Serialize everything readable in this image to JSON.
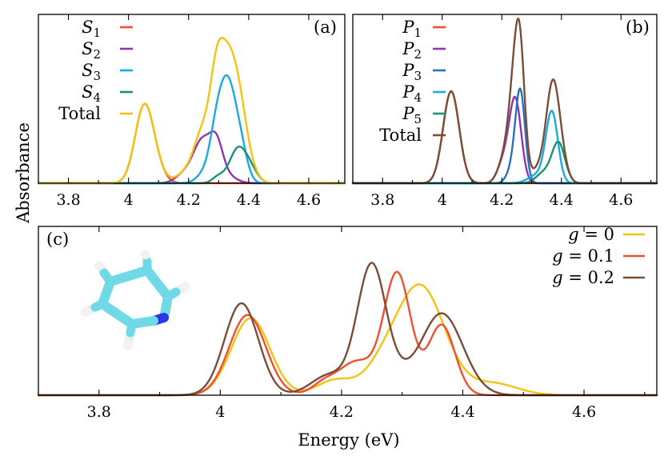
{
  "figure": {
    "ylabel": "Absorbance",
    "xlabel": "Energy (eV)"
  },
  "chart_data": [
    {
      "type": "line",
      "panel": "(a)",
      "xlim": [
        3.7,
        4.72
      ],
      "ylim": [
        0,
        1
      ],
      "ylabel": "Absorbance",
      "xticks": [
        3.8,
        4.0,
        4.2,
        4.4,
        4.6
      ],
      "xtick_labels": [
        "3.8",
        "4",
        "4.2",
        "4.4",
        "4.6"
      ],
      "legend_position": "top-left",
      "series": [
        {
          "id": "S1",
          "base": "S",
          "sub": "1",
          "color": "#f05030",
          "peaks": [
            [
              4.05,
              0.42,
              0.03
            ],
            [
              4.085,
              0.1,
              0.03
            ]
          ]
        },
        {
          "id": "S2",
          "base": "S",
          "sub": "2",
          "color": "#8e35b3",
          "peaks": [
            [
              4.245,
              0.24,
              0.028
            ],
            [
              4.292,
              0.22,
              0.022
            ],
            [
              4.19,
              0.06,
              0.03
            ],
            [
              4.33,
              0.04,
              0.03
            ]
          ]
        },
        {
          "id": "S3",
          "base": "S",
          "sub": "3",
          "color": "#1aa9e0",
          "peaks": [
            [
              4.33,
              0.58,
              0.028
            ],
            [
              4.29,
              0.22,
              0.022
            ],
            [
              4.375,
              0.16,
              0.022
            ],
            [
              4.25,
              0.05,
              0.025
            ]
          ]
        },
        {
          "id": "S4",
          "base": "S",
          "sub": "4",
          "color": "#19927a",
          "peaks": [
            [
              4.36,
              0.18,
              0.026
            ],
            [
              4.4,
              0.1,
              0.026
            ],
            [
              4.3,
              0.04,
              0.02
            ]
          ]
        },
        {
          "id": "Total",
          "label": "Total",
          "color": "#f5c211",
          "sum": true
        }
      ]
    },
    {
      "type": "line",
      "panel": "(b)",
      "xlim": [
        3.7,
        4.72
      ],
      "ylim": [
        0,
        1
      ],
      "xticks": [
        3.8,
        4.0,
        4.2,
        4.4,
        4.6
      ],
      "xtick_labels": [
        "3.8",
        "4",
        "4.2",
        "4.4",
        "4.6"
      ],
      "legend_position": "top-left",
      "series": [
        {
          "id": "P1",
          "base": "P",
          "sub": "1",
          "color": "#f05030",
          "peaks": [
            [
              4.03,
              0.55,
              0.027
            ]
          ]
        },
        {
          "id": "P2",
          "base": "P",
          "sub": "2",
          "color": "#8e35b3",
          "peaks": [
            [
              4.245,
              0.5,
              0.02
            ],
            [
              4.205,
              0.12,
              0.02
            ]
          ]
        },
        {
          "id": "P3",
          "base": "P",
          "sub": "3",
          "color": "#2b6fc4",
          "peaks": [
            [
              4.262,
              0.54,
              0.016
            ],
            [
              4.235,
              0.08,
              0.018
            ]
          ]
        },
        {
          "id": "P4",
          "base": "P",
          "sub": "4",
          "color": "#1aa9e0",
          "peaks": [
            [
              4.368,
              0.42,
              0.02
            ],
            [
              4.32,
              0.05,
              0.03
            ]
          ]
        },
        {
          "id": "P5",
          "base": "P",
          "sub": "5",
          "color": "#19927a",
          "peaks": [
            [
              4.39,
              0.24,
              0.022
            ],
            [
              4.34,
              0.06,
              0.025
            ]
          ]
        },
        {
          "id": "Total",
          "label": "Total",
          "color": "#7a4e36",
          "sum": true
        }
      ]
    },
    {
      "type": "line",
      "panel": "(c)",
      "xlim": [
        3.7,
        4.72
      ],
      "ylim": [
        0,
        1
      ],
      "xlabel": "Energy (eV)",
      "xticks": [
        3.8,
        4.0,
        4.2,
        4.4,
        4.6
      ],
      "xtick_labels": [
        "3.8",
        "4",
        "4.2",
        "4.4",
        "4.6"
      ],
      "legend_position": "top-right",
      "series": [
        {
          "id": "g0",
          "label": "g = 0",
          "color": "#f5c211",
          "peaks": [
            [
              4.05,
              0.46,
              0.032
            ],
            [
              4.33,
              0.65,
              0.04
            ],
            [
              4.265,
              0.12,
              0.03
            ],
            [
              4.19,
              0.09,
              0.03
            ],
            [
              4.45,
              0.07,
              0.04
            ]
          ]
        },
        {
          "id": "g01",
          "label": "g = 0.1",
          "color": "#f05030",
          "peaks": [
            [
              4.045,
              0.48,
              0.03
            ],
            [
              4.292,
              0.72,
              0.022
            ],
            [
              4.365,
              0.42,
              0.022
            ],
            [
              4.225,
              0.2,
              0.03
            ],
            [
              4.17,
              0.06,
              0.02
            ]
          ]
        },
        {
          "id": "g02",
          "label": "g = 0.2",
          "color": "#7a4e36",
          "peaks": [
            [
              4.035,
              0.55,
              0.028
            ],
            [
              4.25,
              0.78,
              0.024
            ],
            [
              4.365,
              0.49,
              0.035
            ],
            [
              4.18,
              0.12,
              0.03
            ],
            [
              4.3,
              0.05,
              0.02
            ]
          ]
        }
      ]
    }
  ],
  "inset": {
    "description_icon": "pyridine-molecule-icon",
    "colors": {
      "carbon": "#6fd9e6",
      "nitrogen": "#2b35e8",
      "hydrogen": "#e8e8e8"
    }
  }
}
